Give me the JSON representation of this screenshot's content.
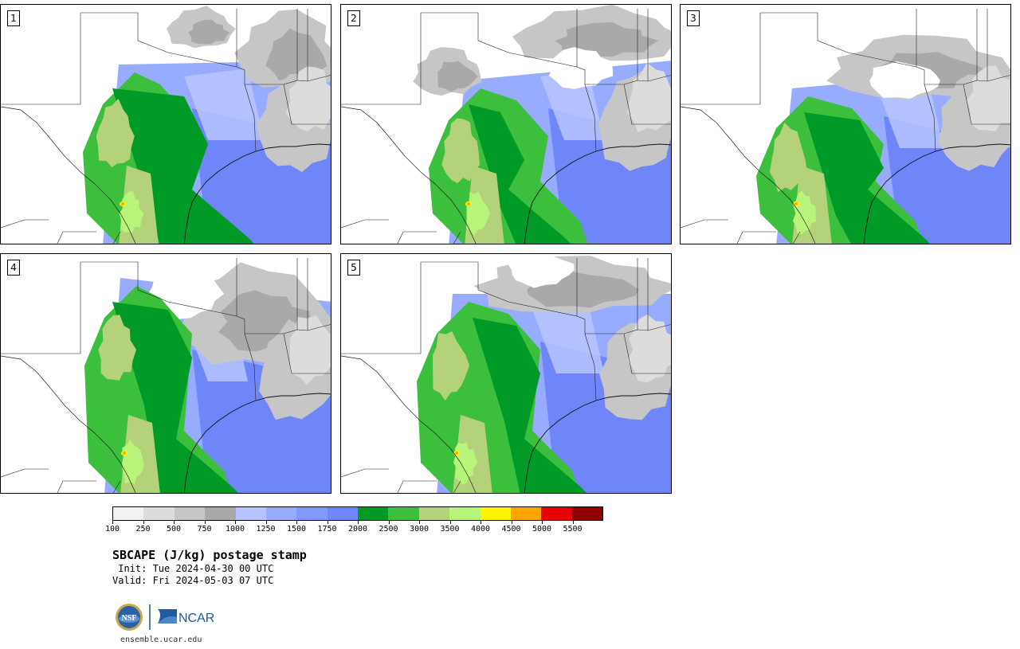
{
  "panels": [
    {
      "label": "1",
      "variant": 0
    },
    {
      "label": "2",
      "variant": 1
    },
    {
      "label": "3",
      "variant": 2
    },
    {
      "label": "4",
      "variant": 3
    },
    {
      "label": "5",
      "variant": 4
    }
  ],
  "colorbar": {
    "colors": [
      "#f2f2f2",
      "#dcdcdc",
      "#c6c6c6",
      "#a9a9a9",
      "#b7c4ff",
      "#97acff",
      "#8198ff",
      "#6f86f8",
      "#009a26",
      "#3cbf3c",
      "#b3d27a",
      "#b8f47a",
      "#fff500",
      "#ffa500",
      "#e60000",
      "#8c0000"
    ],
    "tick_labels": [
      "100",
      "250",
      "500",
      "750",
      "1000",
      "1250",
      "1500",
      "1750",
      "2000",
      "2500",
      "3000",
      "3500",
      "4000",
      "4500",
      "5000",
      "5500"
    ]
  },
  "title": "SBCAPE (J/kg) postage stamp",
  "init": " Init: Tue 2024-04-30 00 UTC",
  "valid": "Valid: Fri 2024-05-03 07 UTC",
  "logos": {
    "nsf": "NSF",
    "ncar": "NCAR"
  },
  "site": "ensemble.ucar.edu"
}
